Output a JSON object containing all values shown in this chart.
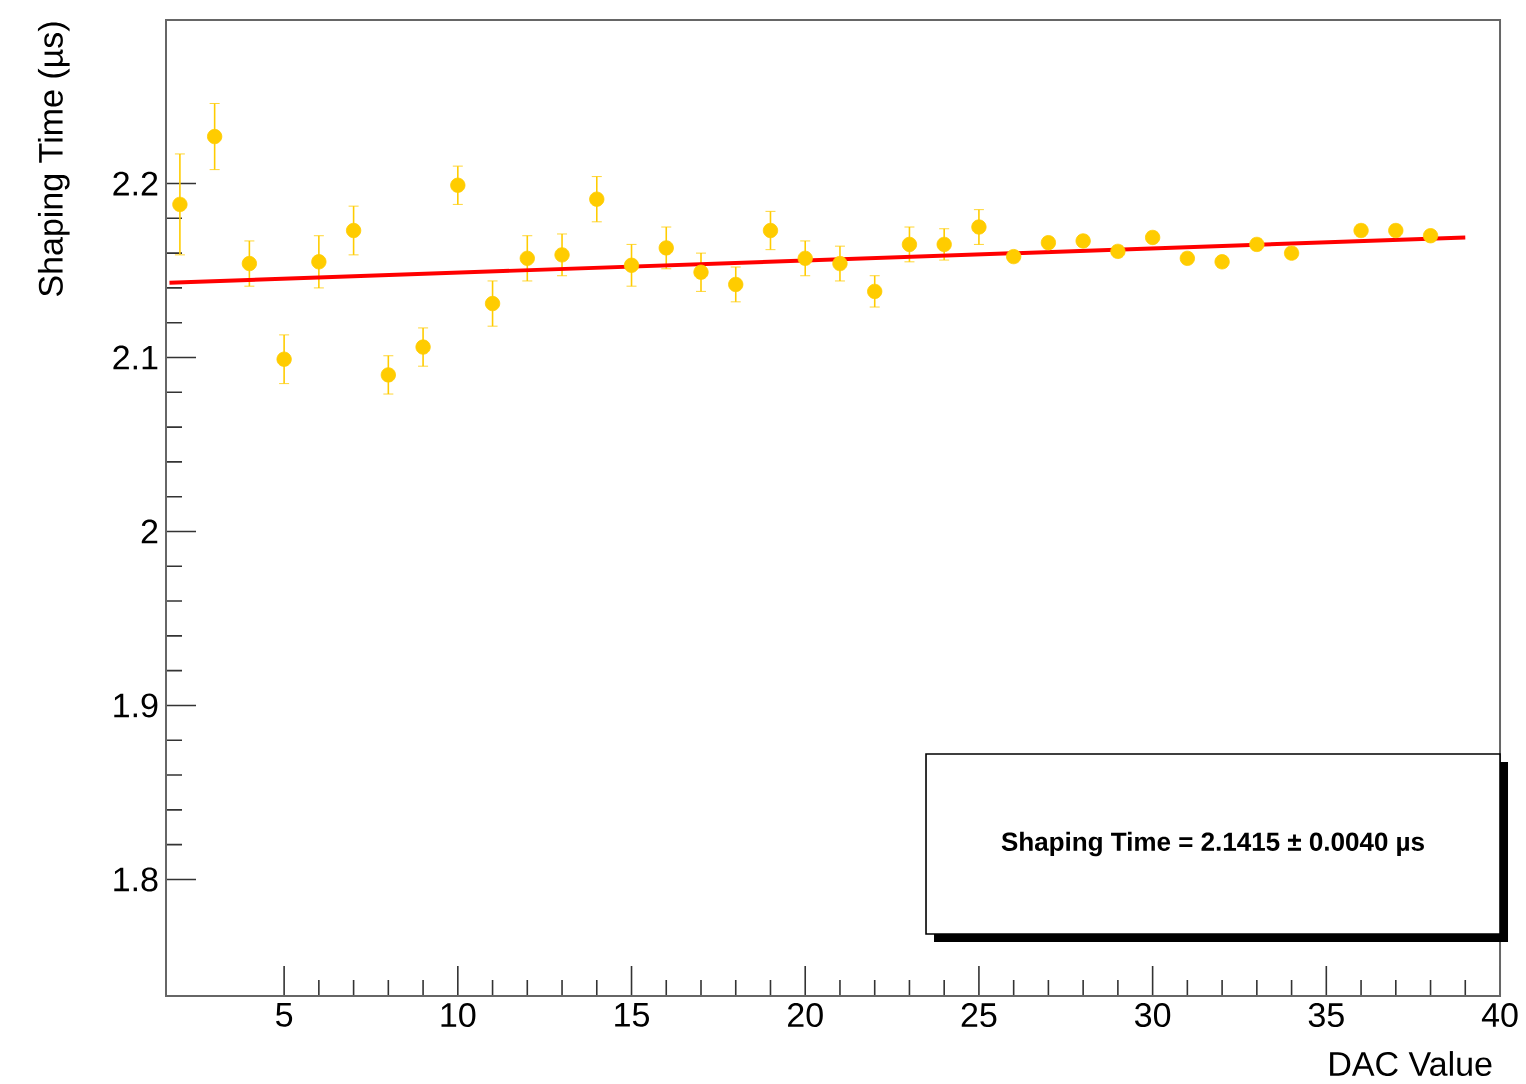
{
  "chart_data": {
    "type": "scatter",
    "xlabel": "DAC Value",
    "ylabel": "Shaping Time (µs)",
    "xlim": [
      1.6,
      40
    ],
    "ylim": [
      1.733,
      2.294
    ],
    "xticks": [
      5,
      10,
      15,
      20,
      25,
      30,
      35,
      40
    ],
    "yticks": [
      1.8,
      1.9,
      2,
      2.1,
      2.2
    ],
    "marker": "circle",
    "annotations": [
      "Shaping Time = 2.1415 ± 0.0040 µs"
    ],
    "series": [
      {
        "color": "#ffcc00",
        "x": [
          2,
          3,
          4,
          5,
          6,
          7,
          8,
          9,
          10,
          11,
          12,
          13,
          14,
          15,
          16,
          17,
          18,
          19,
          20,
          21,
          22,
          23,
          24,
          25,
          26,
          27,
          28,
          29,
          30,
          31,
          32,
          33,
          34,
          36,
          37,
          38
        ],
        "values": [
          2.188,
          2.227,
          2.154,
          2.099,
          2.155,
          2.173,
          2.09,
          2.106,
          2.199,
          2.131,
          2.157,
          2.159,
          2.191,
          2.153,
          2.163,
          2.149,
          2.142,
          2.173,
          2.157,
          2.154,
          2.138,
          2.165,
          2.165,
          2.175,
          2.158,
          2.166,
          2.167,
          2.161,
          2.169,
          2.157,
          2.155,
          2.165,
          2.16,
          2.173,
          2.173,
          2.17
        ],
        "errors": [
          0.029,
          0.019,
          0.013,
          0.014,
          0.015,
          0.014,
          0.011,
          0.011,
          0.011,
          0.013,
          0.013,
          0.012,
          0.013,
          0.012,
          0.012,
          0.011,
          0.01,
          0.011,
          0.01,
          0.01,
          0.009,
          0.01,
          0.009,
          0.01,
          0.003,
          0.003,
          0.003,
          0.003,
          0.003,
          0.003,
          0.003,
          0.003,
          0.003,
          0.003,
          0.003,
          0.003
        ]
      },
      {
        "type": "line",
        "color": "#ff0000",
        "marker": "none",
        "x": [
          1.7,
          39
        ],
        "values": [
          2.143,
          2.169
        ]
      }
    ]
  }
}
